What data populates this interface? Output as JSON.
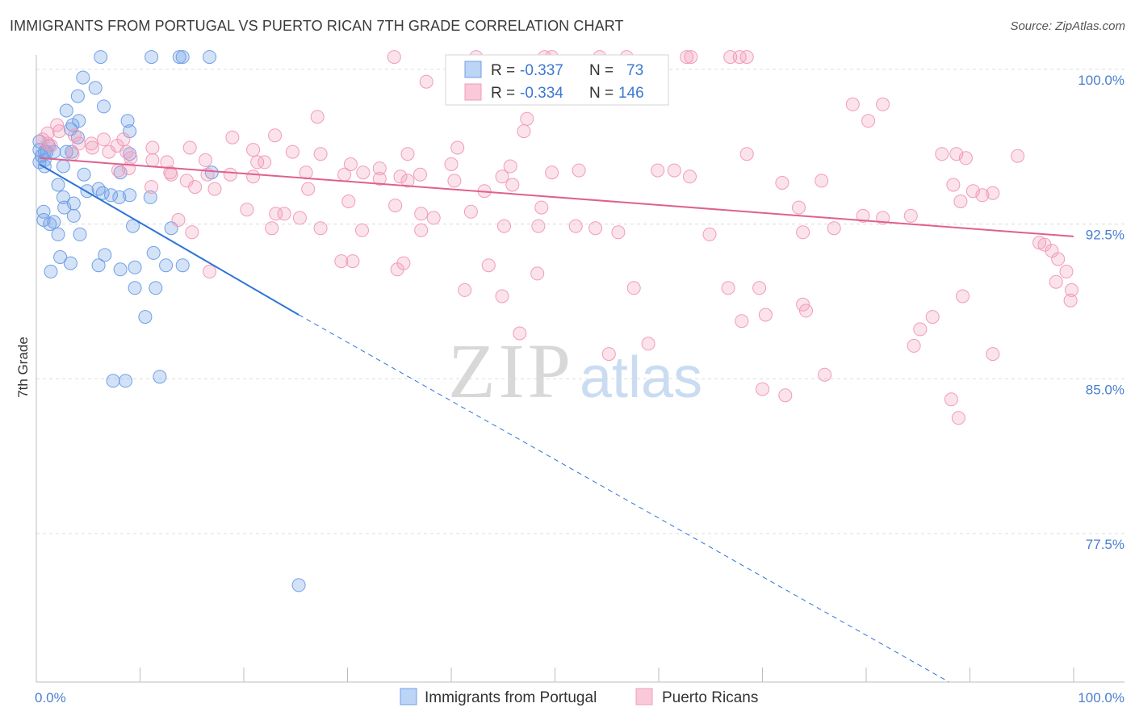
{
  "title": "IMMIGRANTS FROM PORTUGAL VS PUERTO RICAN 7TH GRADE CORRELATION CHART",
  "source": "Source: ZipAtlas.com",
  "watermark": {
    "zip": "ZIP",
    "atlas": "atlas"
  },
  "legend_box": {
    "rows": [
      {
        "r_label": "R =",
        "r_value": "-0.337",
        "n_label": "N =",
        "n_value": "73"
      },
      {
        "r_label": "R =",
        "r_value": "-0.334",
        "n_label": "N =",
        "n_value": "146"
      }
    ]
  },
  "colors": {
    "blue": "#6fa0e6",
    "blue_line": "#2d74d8",
    "pink": "#f29bb8",
    "pink_line": "#e0608f",
    "tick": "#4a7fcf"
  },
  "chart_data": {
    "type": "scatter",
    "ylabel": "7th Grade",
    "x_tick_labels": [
      "0.0%",
      "100.0%"
    ],
    "y_tick_labels": [
      "100.0%",
      "92.5%",
      "85.0%",
      "77.5%"
    ],
    "y_ticks": [
      100.0,
      92.5,
      85.0,
      77.5
    ],
    "xlim": [
      0,
      100
    ],
    "ylim": [
      70.3,
      100.7
    ],
    "grid": true,
    "legend_placement": "bottom",
    "series": [
      {
        "name": "Immigrants from Portugal",
        "color": "#6fa0e6",
        "r": -0.337,
        "n": 73,
        "trend": {
          "x0": 0.3,
          "y0": 95.4,
          "x1": 25.3,
          "y1": 88.1,
          "dash_to_x": 88.0,
          "dash_to_y": 70.3
        },
        "points": [
          [
            6.2,
            100.6
          ],
          [
            11.1,
            100.6
          ],
          [
            13.8,
            100.6
          ],
          [
            14.1,
            100.6
          ],
          [
            16.7,
            100.6
          ],
          [
            4.5,
            99.6
          ],
          [
            5.7,
            99.1
          ],
          [
            4.0,
            98.7
          ],
          [
            6.5,
            98.2
          ],
          [
            2.9,
            98.0
          ],
          [
            8.8,
            97.5
          ],
          [
            4.1,
            97.5
          ],
          [
            3.5,
            97.3
          ],
          [
            3.3,
            97.1
          ],
          [
            9.0,
            97.0
          ],
          [
            4.0,
            96.7
          ],
          [
            0.3,
            96.5
          ],
          [
            1.2,
            96.3
          ],
          [
            0.3,
            96.1
          ],
          [
            0.8,
            96.0
          ],
          [
            1.0,
            96.0
          ],
          [
            1.7,
            96.0
          ],
          [
            2.9,
            96.0
          ],
          [
            3.4,
            96.0
          ],
          [
            0.5,
            95.8
          ],
          [
            0.8,
            95.6
          ],
          [
            9.0,
            95.9
          ],
          [
            0.3,
            95.5
          ],
          [
            0.8,
            95.3
          ],
          [
            2.6,
            95.3
          ],
          [
            8.1,
            95.0
          ],
          [
            16.9,
            95.0
          ],
          [
            4.6,
            94.9
          ],
          [
            2.1,
            94.4
          ],
          [
            6.0,
            94.2
          ],
          [
            6.4,
            94.0
          ],
          [
            4.9,
            94.1
          ],
          [
            7.2,
            93.9
          ],
          [
            9.0,
            93.9
          ],
          [
            2.6,
            93.8
          ],
          [
            8.0,
            93.8
          ],
          [
            11.0,
            93.8
          ],
          [
            3.6,
            93.5
          ],
          [
            2.7,
            93.3
          ],
          [
            0.7,
            93.1
          ],
          [
            3.6,
            92.9
          ],
          [
            0.7,
            92.7
          ],
          [
            1.7,
            92.6
          ],
          [
            1.3,
            92.5
          ],
          [
            9.3,
            92.4
          ],
          [
            13.0,
            92.3
          ],
          [
            2.1,
            92.0
          ],
          [
            4.2,
            92.0
          ],
          [
            6.6,
            91.0
          ],
          [
            11.3,
            91.1
          ],
          [
            2.3,
            90.9
          ],
          [
            3.3,
            90.6
          ],
          [
            6.0,
            90.5
          ],
          [
            8.1,
            90.3
          ],
          [
            12.5,
            90.5
          ],
          [
            14.1,
            90.5
          ],
          [
            1.4,
            90.2
          ],
          [
            9.5,
            90.4
          ],
          [
            9.5,
            89.4
          ],
          [
            11.5,
            89.4
          ],
          [
            10.5,
            88.0
          ],
          [
            11.9,
            85.1
          ],
          [
            7.4,
            84.9
          ],
          [
            8.6,
            84.9
          ],
          [
            25.3,
            75.0
          ]
        ]
      },
      {
        "name": "Puerto Ricans",
        "color": "#f29bb8",
        "r": -0.334,
        "n": 146,
        "trend": {
          "x0": 0.3,
          "y0": 95.7,
          "x1": 100.0,
          "y1": 91.9
        },
        "points": [
          [
            34.5,
            100.6
          ],
          [
            42.4,
            100.6
          ],
          [
            49.0,
            100.6
          ],
          [
            49.7,
            100.6
          ],
          [
            54.3,
            100.6
          ],
          [
            56.9,
            100.6
          ],
          [
            62.7,
            100.6
          ],
          [
            63.1,
            100.6
          ],
          [
            66.9,
            100.6
          ],
          [
            67.8,
            100.6
          ],
          [
            68.5,
            100.6
          ],
          [
            37.6,
            99.4
          ],
          [
            78.7,
            98.3
          ],
          [
            81.6,
            98.3
          ],
          [
            27.1,
            97.7
          ],
          [
            47.3,
            97.6
          ],
          [
            80.2,
            97.5
          ],
          [
            2.0,
            97.3
          ],
          [
            2.2,
            97.0
          ],
          [
            47.0,
            97.0
          ],
          [
            1.1,
            96.9
          ],
          [
            23.0,
            96.8
          ],
          [
            3.7,
            96.8
          ],
          [
            0.6,
            96.6
          ],
          [
            6.5,
            96.6
          ],
          [
            8.4,
            96.6
          ],
          [
            1.1,
            96.4
          ],
          [
            4.1,
            96.4
          ],
          [
            5.3,
            96.4
          ],
          [
            1.4,
            96.3
          ],
          [
            7.8,
            96.3
          ],
          [
            11.2,
            96.2
          ],
          [
            18.9,
            96.7
          ],
          [
            20.9,
            96.1
          ],
          [
            40.6,
            96.2
          ],
          [
            5.4,
            96.2
          ],
          [
            7.0,
            96.0
          ],
          [
            8.7,
            96.0
          ],
          [
            3.5,
            95.9
          ],
          [
            14.8,
            96.2
          ],
          [
            24.7,
            96.0
          ],
          [
            27.4,
            95.9
          ],
          [
            35.8,
            95.9
          ],
          [
            68.5,
            95.9
          ],
          [
            87.3,
            95.9
          ],
          [
            88.7,
            95.9
          ],
          [
            89.6,
            95.7
          ],
          [
            94.6,
            95.8
          ],
          [
            9.1,
            95.7
          ],
          [
            11.2,
            95.6
          ],
          [
            12.6,
            95.5
          ],
          [
            16.3,
            95.6
          ],
          [
            21.3,
            95.5
          ],
          [
            22.0,
            95.5
          ],
          [
            30.3,
            95.4
          ],
          [
            33.1,
            95.2
          ],
          [
            40.0,
            95.4
          ],
          [
            45.7,
            95.3
          ],
          [
            59.9,
            95.1
          ],
          [
            7.9,
            95.1
          ],
          [
            8.9,
            95.2
          ],
          [
            12.9,
            95.0
          ],
          [
            13.0,
            94.9
          ],
          [
            14.5,
            94.6
          ],
          [
            16.5,
            94.9
          ],
          [
            18.7,
            94.9
          ],
          [
            20.9,
            94.8
          ],
          [
            26.0,
            95.0
          ],
          [
            29.7,
            94.9
          ],
          [
            31.5,
            95.0
          ],
          [
            35.1,
            94.8
          ],
          [
            33.1,
            94.7
          ],
          [
            37.0,
            94.9
          ],
          [
            35.8,
            94.6
          ],
          [
            40.3,
            94.6
          ],
          [
            44.9,
            94.8
          ],
          [
            45.9,
            94.4
          ],
          [
            49.7,
            95.0
          ],
          [
            52.3,
            95.1
          ],
          [
            61.5,
            95.1
          ],
          [
            63.0,
            94.8
          ],
          [
            71.9,
            94.5
          ],
          [
            75.7,
            94.6
          ],
          [
            88.4,
            94.4
          ],
          [
            11.1,
            94.3
          ],
          [
            15.3,
            94.3
          ],
          [
            17.2,
            94.2
          ],
          [
            26.2,
            94.2
          ],
          [
            43.2,
            94.1
          ],
          [
            89.1,
            93.6
          ],
          [
            90.3,
            94.1
          ],
          [
            91.2,
            93.9
          ],
          [
            92.2,
            94.0
          ],
          [
            30.1,
            93.6
          ],
          [
            34.6,
            93.4
          ],
          [
            20.3,
            93.2
          ],
          [
            23.1,
            93.0
          ],
          [
            23.9,
            93.0
          ],
          [
            25.4,
            92.8
          ],
          [
            37.1,
            93.0
          ],
          [
            38.3,
            92.8
          ],
          [
            41.9,
            93.1
          ],
          [
            48.7,
            93.3
          ],
          [
            48.4,
            92.4
          ],
          [
            73.5,
            93.3
          ],
          [
            79.7,
            92.9
          ],
          [
            84.3,
            92.9
          ],
          [
            81.6,
            92.8
          ],
          [
            13.7,
            92.7
          ],
          [
            15.0,
            92.1
          ],
          [
            22.7,
            92.3
          ],
          [
            27.4,
            92.3
          ],
          [
            31.4,
            92.2
          ],
          [
            37.1,
            92.2
          ],
          [
            45.1,
            92.4
          ],
          [
            52.0,
            92.4
          ],
          [
            53.9,
            92.3
          ],
          [
            56.1,
            92.1
          ],
          [
            64.9,
            92.0
          ],
          [
            73.9,
            92.1
          ],
          [
            76.9,
            92.3
          ],
          [
            96.7,
            91.6
          ],
          [
            97.2,
            91.5
          ],
          [
            97.9,
            91.2
          ],
          [
            98.5,
            90.8
          ],
          [
            99.3,
            90.2
          ],
          [
            98.3,
            89.7
          ],
          [
            99.8,
            89.3
          ],
          [
            99.7,
            88.8
          ],
          [
            16.7,
            90.2
          ],
          [
            29.4,
            90.7
          ],
          [
            30.5,
            90.7
          ],
          [
            35.4,
            90.6
          ],
          [
            34.8,
            90.3
          ],
          [
            43.6,
            90.5
          ],
          [
            48.3,
            90.1
          ],
          [
            41.3,
            89.3
          ],
          [
            44.9,
            89.0
          ],
          [
            57.6,
            89.4
          ],
          [
            66.7,
            89.4
          ],
          [
            69.7,
            89.4
          ],
          [
            89.3,
            89.0
          ],
          [
            73.9,
            88.6
          ],
          [
            74.2,
            88.3
          ],
          [
            68.0,
            87.8
          ],
          [
            70.3,
            88.1
          ],
          [
            86.4,
            88.0
          ],
          [
            46.6,
            87.2
          ],
          [
            59.0,
            86.7
          ],
          [
            55.2,
            86.2
          ],
          [
            84.6,
            86.6
          ],
          [
            85.2,
            87.4
          ],
          [
            92.2,
            86.2
          ],
          [
            76.0,
            85.2
          ],
          [
            70.0,
            84.5
          ],
          [
            72.2,
            84.2
          ],
          [
            88.2,
            84.0
          ],
          [
            88.9,
            83.1
          ]
        ]
      }
    ]
  },
  "bottom_legend": [
    {
      "label": "Immigrants from Portugal"
    },
    {
      "label": "Puerto Ricans"
    }
  ]
}
